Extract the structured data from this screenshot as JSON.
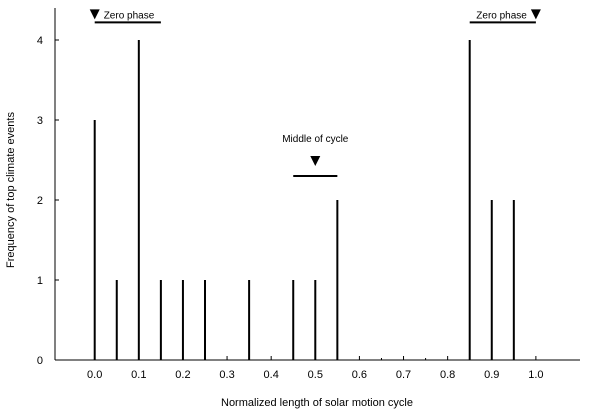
{
  "chart_data": {
    "type": "bar",
    "title": "",
    "xlabel": "Normalized length of solar motion cycle",
    "ylabel": "Frequency of top climate events",
    "xlim": [
      -0.09,
      1.1
    ],
    "ylim": [
      0,
      4.4
    ],
    "xticks": [
      0.0,
      0.1,
      0.2,
      0.3,
      0.4,
      0.5,
      0.6,
      0.7,
      0.8,
      0.9,
      1.0
    ],
    "xtick_labels": [
      "0.0",
      "0.1",
      "0.2",
      "0.3",
      "0.4",
      "0.5",
      "0.6",
      "0.7",
      "0.8",
      "0.9",
      "1.0"
    ],
    "yticks": [
      0,
      1,
      2,
      3,
      4
    ],
    "ytick_labels": [
      "0",
      "1",
      "2",
      "3",
      "4"
    ],
    "minor_x_step": 0.05,
    "grid": false,
    "bars": {
      "x": [
        0.0,
        0.05,
        0.1,
        0.15,
        0.2,
        0.25,
        0.35,
        0.45,
        0.5,
        0.55,
        0.85,
        0.9,
        0.95
      ],
      "values": [
        3,
        1,
        4,
        1,
        1,
        1,
        1,
        1,
        1,
        2,
        4,
        2,
        2
      ]
    },
    "annotations": [
      {
        "label": "Zero phase",
        "marker": "down-triangle",
        "marker_side": "left",
        "x_range": [
          0.0,
          0.15
        ],
        "y": 4.22
      },
      {
        "label": "Middle of cycle",
        "marker": "down-triangle",
        "marker_side": "center",
        "x_range": [
          0.45,
          0.55
        ],
        "y": 2.3
      },
      {
        "label": "Zero phase",
        "marker": "down-triangle",
        "marker_side": "right",
        "x_range": [
          0.85,
          1.0
        ],
        "y": 4.22
      }
    ]
  }
}
